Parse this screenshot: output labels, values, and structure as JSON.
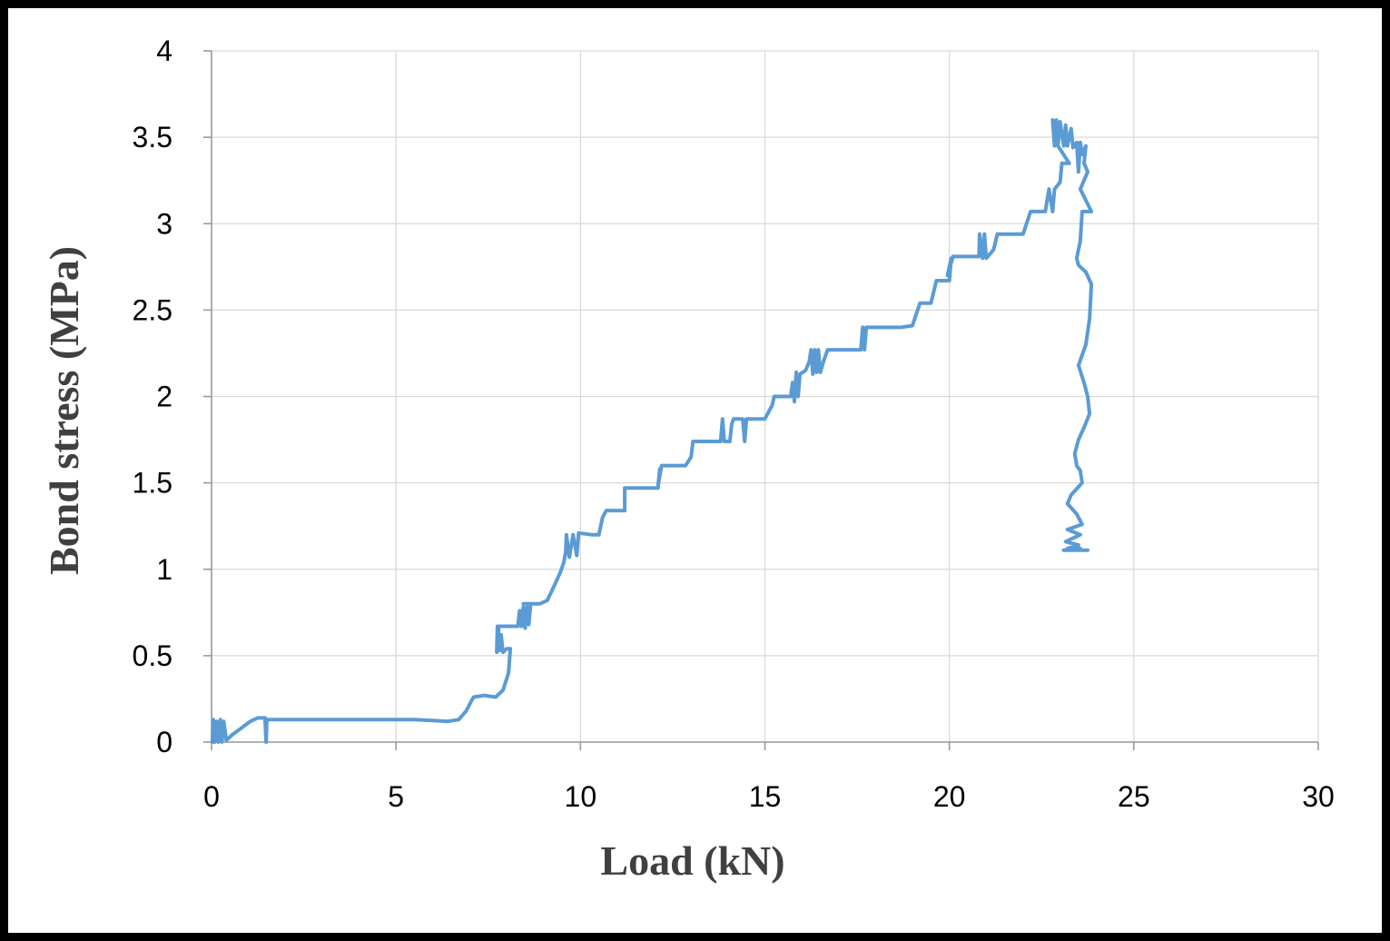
{
  "chart_data": {
    "type": "line",
    "title": "",
    "xlabel": "Load (kN)",
    "ylabel": "Bond stress (MPa)",
    "xlim": [
      0,
      30
    ],
    "ylim": [
      0,
      4
    ],
    "x_ticks": [
      0,
      5,
      10,
      15,
      20,
      25,
      30
    ],
    "y_ticks": [
      0,
      0.5,
      1,
      1.5,
      2,
      2.5,
      3,
      3.5,
      4
    ],
    "x_tick_labels": [
      "0",
      "5",
      "10",
      "15",
      "20",
      "25",
      "30"
    ],
    "y_tick_labels": [
      "0",
      "0.5",
      "1",
      "1.5",
      "2",
      "2.5",
      "3",
      "3.5",
      "4"
    ],
    "grid": true,
    "legend": "none",
    "line_color": "#5B9BD5",
    "series": [
      {
        "values": [
          [
            0.02,
            0.0
          ],
          [
            0.05,
            0.13
          ],
          [
            0.08,
            0.0
          ],
          [
            0.14,
            0.12
          ],
          [
            0.18,
            0.0
          ],
          [
            0.24,
            0.13
          ],
          [
            0.28,
            0.0
          ],
          [
            0.33,
            0.12
          ],
          [
            0.4,
            0.01
          ],
          [
            0.55,
            0.04
          ],
          [
            0.8,
            0.08
          ],
          [
            1.05,
            0.12
          ],
          [
            1.25,
            0.14
          ],
          [
            1.45,
            0.14
          ],
          [
            1.48,
            0.0
          ],
          [
            1.5,
            0.13
          ],
          [
            2.5,
            0.13
          ],
          [
            4.0,
            0.13
          ],
          [
            5.5,
            0.13
          ],
          [
            6.0,
            0.125
          ],
          [
            6.4,
            0.12
          ],
          [
            6.7,
            0.13
          ],
          [
            6.9,
            0.18
          ],
          [
            7.1,
            0.26
          ],
          [
            7.4,
            0.27
          ],
          [
            7.7,
            0.26
          ],
          [
            7.9,
            0.3
          ],
          [
            8.05,
            0.4
          ],
          [
            8.1,
            0.54
          ],
          [
            8.0,
            0.54
          ],
          [
            7.9,
            0.52
          ],
          [
            7.85,
            0.62
          ],
          [
            7.8,
            0.53
          ],
          [
            7.78,
            0.66
          ],
          [
            7.73,
            0.52
          ],
          [
            7.75,
            0.67
          ],
          [
            8.3,
            0.67
          ],
          [
            8.35,
            0.76
          ],
          [
            8.4,
            0.67
          ],
          [
            8.45,
            0.78
          ],
          [
            8.5,
            0.66
          ],
          [
            8.55,
            0.78
          ],
          [
            8.6,
            0.68
          ],
          [
            8.65,
            0.8
          ],
          [
            8.45,
            0.8
          ],
          [
            8.9,
            0.8
          ],
          [
            9.1,
            0.82
          ],
          [
            9.3,
            0.91
          ],
          [
            9.45,
            0.98
          ],
          [
            9.55,
            1.04
          ],
          [
            9.6,
            1.1
          ],
          [
            9.62,
            1.2
          ],
          [
            9.7,
            1.07
          ],
          [
            9.8,
            1.2
          ],
          [
            9.9,
            1.08
          ],
          [
            9.95,
            1.21
          ],
          [
            10.3,
            1.2
          ],
          [
            10.5,
            1.2
          ],
          [
            10.6,
            1.3
          ],
          [
            10.7,
            1.34
          ],
          [
            11.2,
            1.34
          ],
          [
            11.2,
            1.47
          ],
          [
            11.8,
            1.47
          ],
          [
            12.1,
            1.47
          ],
          [
            12.15,
            1.58
          ],
          [
            12.1,
            1.48
          ],
          [
            12.2,
            1.6
          ],
          [
            12.85,
            1.6
          ],
          [
            13.0,
            1.65
          ],
          [
            13.05,
            1.74
          ],
          [
            13.8,
            1.74
          ],
          [
            13.85,
            1.87
          ],
          [
            13.9,
            1.74
          ],
          [
            14.05,
            1.74
          ],
          [
            14.1,
            1.84
          ],
          [
            14.15,
            1.87
          ],
          [
            14.4,
            1.87
          ],
          [
            14.45,
            1.74
          ],
          [
            14.5,
            1.87
          ],
          [
            15.0,
            1.87
          ],
          [
            15.2,
            1.95
          ],
          [
            15.25,
            2.0
          ],
          [
            15.7,
            2.0
          ],
          [
            15.75,
            2.08
          ],
          [
            15.8,
            1.97
          ],
          [
            15.85,
            2.14
          ],
          [
            15.9,
            2.0
          ],
          [
            15.95,
            2.13
          ],
          [
            16.1,
            2.15
          ],
          [
            16.2,
            2.2
          ],
          [
            16.25,
            2.27
          ],
          [
            16.3,
            2.13
          ],
          [
            16.35,
            2.27
          ],
          [
            16.4,
            2.14
          ],
          [
            16.45,
            2.27
          ],
          [
            16.5,
            2.14
          ],
          [
            16.6,
            2.21
          ],
          [
            16.7,
            2.27
          ],
          [
            17.6,
            2.27
          ],
          [
            17.65,
            2.4
          ],
          [
            17.7,
            2.27
          ],
          [
            17.75,
            2.4
          ],
          [
            18.7,
            2.4
          ],
          [
            19.0,
            2.41
          ],
          [
            19.2,
            2.54
          ],
          [
            19.5,
            2.54
          ],
          [
            19.65,
            2.67
          ],
          [
            20.0,
            2.67
          ],
          [
            20.05,
            2.8
          ],
          [
            19.95,
            2.7
          ],
          [
            20.1,
            2.81
          ],
          [
            20.8,
            2.81
          ],
          [
            20.82,
            2.94
          ],
          [
            20.9,
            2.8
          ],
          [
            20.95,
            2.94
          ],
          [
            21.0,
            2.8
          ],
          [
            21.2,
            2.85
          ],
          [
            21.3,
            2.94
          ],
          [
            22.0,
            2.94
          ],
          [
            22.2,
            3.07
          ],
          [
            22.5,
            3.07
          ],
          [
            22.6,
            3.07
          ],
          [
            22.7,
            3.2
          ],
          [
            22.8,
            3.07
          ],
          [
            22.85,
            3.2
          ],
          [
            23.0,
            3.24
          ],
          [
            23.05,
            3.35
          ],
          [
            23.25,
            3.35
          ],
          [
            22.85,
            3.48
          ],
          [
            22.8,
            3.6
          ],
          [
            22.85,
            3.45
          ],
          [
            22.9,
            3.6
          ],
          [
            22.95,
            3.46
          ],
          [
            23.0,
            3.59
          ],
          [
            23.1,
            3.45
          ],
          [
            23.15,
            3.57
          ],
          [
            23.2,
            3.45
          ],
          [
            23.3,
            3.55
          ],
          [
            23.35,
            3.44
          ],
          [
            23.45,
            3.47
          ],
          [
            23.5,
            3.3
          ],
          [
            23.55,
            3.47
          ],
          [
            23.6,
            3.4
          ],
          [
            23.7,
            3.45
          ],
          [
            23.65,
            3.35
          ],
          [
            23.75,
            3.3
          ],
          [
            23.55,
            3.2
          ],
          [
            23.85,
            3.07
          ],
          [
            23.6,
            3.07
          ],
          [
            23.55,
            2.9
          ],
          [
            23.45,
            2.8
          ],
          [
            23.5,
            2.76
          ],
          [
            23.7,
            2.72
          ],
          [
            23.85,
            2.65
          ],
          [
            23.8,
            2.45
          ],
          [
            23.7,
            2.3
          ],
          [
            23.5,
            2.18
          ],
          [
            23.65,
            2.08
          ],
          [
            23.75,
            2.0
          ],
          [
            23.8,
            1.9
          ],
          [
            23.65,
            1.82
          ],
          [
            23.5,
            1.75
          ],
          [
            23.4,
            1.67
          ],
          [
            23.45,
            1.6
          ],
          [
            23.55,
            1.57
          ],
          [
            23.6,
            1.5
          ],
          [
            23.3,
            1.43
          ],
          [
            23.2,
            1.38
          ],
          [
            23.45,
            1.32
          ],
          [
            23.6,
            1.26
          ],
          [
            23.2,
            1.23
          ],
          [
            23.55,
            1.2
          ],
          [
            23.15,
            1.16
          ],
          [
            23.5,
            1.14
          ],
          [
            23.2,
            1.12
          ],
          [
            23.55,
            1.12
          ],
          [
            23.1,
            1.11
          ],
          [
            23.75,
            1.11
          ]
        ]
      }
    ]
  }
}
